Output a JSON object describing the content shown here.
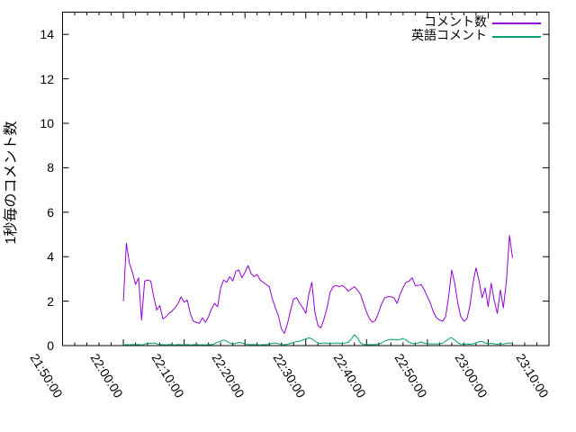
{
  "chart_data": {
    "type": "line",
    "title": "",
    "xlabel": "",
    "ylabel": "1秒毎のコメント数",
    "grid": false,
    "legend_position": "top-right-inside",
    "x_axis": {
      "start": "21:50:00",
      "end": "23:10:00",
      "major_tick_interval_s": 600,
      "minor_tick_interval_s": 120,
      "tick_labels": [
        "21:50:00",
        "22:00:00",
        "22:10:00",
        "22:20:00",
        "22:30:00",
        "22:40:00",
        "22:50:00",
        "23:00:00",
        "23:10:00"
      ]
    },
    "y_axis": {
      "min": 0,
      "max": 15,
      "ticks": [
        0,
        2,
        4,
        6,
        8,
        10,
        12,
        14
      ],
      "tick_labels": [
        "0",
        "2",
        "4",
        "6",
        "8",
        "10",
        "12",
        "14"
      ]
    },
    "legend": [
      {
        "label": "コメント数",
        "color": "#9400d3"
      },
      {
        "label": "英語コメント",
        "color": "#009e73"
      }
    ],
    "series": [
      {
        "name": "コメント数",
        "color": "#9400d3",
        "start_time": "22:00:00",
        "interval_s": 30,
        "values": [
          2.0,
          4.6,
          3.7,
          3.3,
          2.75,
          3.05,
          1.15,
          2.9,
          2.95,
          2.9,
          2.2,
          1.6,
          1.8,
          1.2,
          1.3,
          1.45,
          1.55,
          1.7,
          1.9,
          2.2,
          1.95,
          2.05,
          1.45,
          1.1,
          1.05,
          1.0,
          1.25,
          1.05,
          1.3,
          1.65,
          1.9,
          1.75,
          2.6,
          2.95,
          2.85,
          3.1,
          2.9,
          3.35,
          3.4,
          3.05,
          3.3,
          3.6,
          3.25,
          3.1,
          3.2,
          2.95,
          2.85,
          2.75,
          2.65,
          2.1,
          1.7,
          1.35,
          0.75,
          0.55,
          1.0,
          1.6,
          2.1,
          2.15,
          1.9,
          1.7,
          1.45,
          2.3,
          2.85,
          1.5,
          0.9,
          0.8,
          1.2,
          1.7,
          2.4,
          2.65,
          2.7,
          2.65,
          2.7,
          2.6,
          2.45,
          2.55,
          2.65,
          2.5,
          2.3,
          1.9,
          1.5,
          1.2,
          1.05,
          1.15,
          1.5,
          1.9,
          2.15,
          2.2,
          2.2,
          2.15,
          1.9,
          2.3,
          2.6,
          2.85,
          2.9,
          3.05,
          2.7,
          2.7,
          2.75,
          2.5,
          2.2,
          1.9,
          1.5,
          1.25,
          1.15,
          1.1,
          1.3,
          2.2,
          3.4,
          2.8,
          1.9,
          1.3,
          1.1,
          1.2,
          1.8,
          2.8,
          3.5,
          2.9,
          2.15,
          2.6,
          1.75,
          2.8,
          2.0,
          1.45,
          2.5,
          1.7,
          2.9,
          4.95,
          3.95
        ]
      },
      {
        "name": "英語コメント",
        "color": "#009e73",
        "start_time": "22:00:00",
        "interval_s": 30,
        "values": [
          0.02,
          0.05,
          0.03,
          0.05,
          0.04,
          0.05,
          0.03,
          0.06,
          0.12,
          0.1,
          0.12,
          0.08,
          0.04,
          0.05,
          0.03,
          0.05,
          0.04,
          0.03,
          0.05,
          0.04,
          0.03,
          0.05,
          0.03,
          0.04,
          0.05,
          0.03,
          0.04,
          0.03,
          0.05,
          0.04,
          0.08,
          0.15,
          0.2,
          0.25,
          0.2,
          0.12,
          0.06,
          0.1,
          0.14,
          0.12,
          0.08,
          0.05,
          0.04,
          0.05,
          0.04,
          0.03,
          0.05,
          0.04,
          0.06,
          0.1,
          0.12,
          0.08,
          0.05,
          0.04,
          0.06,
          0.1,
          0.14,
          0.18,
          0.2,
          0.25,
          0.3,
          0.35,
          0.3,
          0.2,
          0.12,
          0.1,
          0.12,
          0.1,
          0.12,
          0.1,
          0.12,
          0.1,
          0.11,
          0.12,
          0.15,
          0.3,
          0.49,
          0.35,
          0.12,
          0.05,
          0.04,
          0.05,
          0.04,
          0.05,
          0.06,
          0.12,
          0.2,
          0.26,
          0.28,
          0.27,
          0.25,
          0.28,
          0.32,
          0.25,
          0.15,
          0.1,
          0.08,
          0.12,
          0.16,
          0.1,
          0.08,
          0.07,
          0.08,
          0.07,
          0.08,
          0.1,
          0.2,
          0.3,
          0.36,
          0.25,
          0.12,
          0.07,
          0.06,
          0.07,
          0.06,
          0.08,
          0.12,
          0.18,
          0.19,
          0.12,
          0.08,
          0.1,
          0.08,
          0.06,
          0.08,
          0.07,
          0.1,
          0.12,
          0.1
        ]
      }
    ],
    "colors": {
      "axis": "#000000",
      "background": "#ffffff",
      "text": "#000000"
    }
  }
}
